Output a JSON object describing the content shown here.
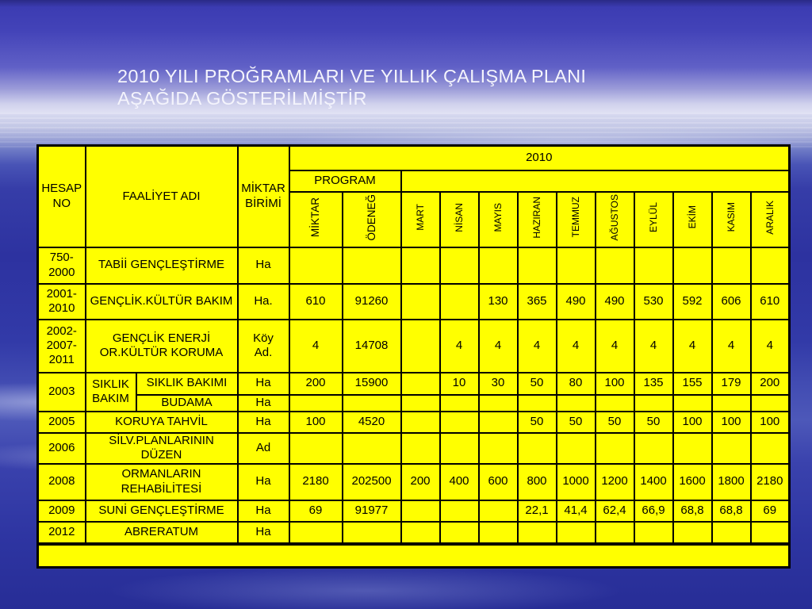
{
  "slide": {
    "title": "2010 YILI PROĞRAMLARI VE YILLIK ÇALIŞMA PLANI\nAŞAĞIDA GÖSTERİLMİŞTİR"
  },
  "colors": {
    "table_bg": "#FFFF00",
    "table_border": "#000000",
    "title_text": "#F4F4FC",
    "background_blue": "#2D32A0"
  },
  "table": {
    "header": {
      "hesap_no": "HESAP\nNO",
      "faaliyet_adi": "FAALİYET ADI",
      "miktar_birimi": "MİKTAR\nBİRİMİ",
      "year": "2010",
      "program": "PROGRAM",
      "program_sub": [
        "MİKTAR",
        "ÖDENEĞ"
      ],
      "months": [
        "MART",
        "NİSAN",
        "MAYIS",
        "HAZIRAN",
        "TEMMUZ",
        "AĞUSTOS",
        "EYLÜL",
        "EKİM",
        "KASIM",
        "ARALIK"
      ]
    },
    "rows": [
      {
        "hesap": "750-\n2000",
        "label": "TABİİ GENÇLEŞTİRME",
        "birim": "Ha",
        "miktar": "",
        "odenek": "",
        "months": [
          "",
          "",
          "",
          "",
          "",
          "",
          "",
          "",
          "",
          ""
        ]
      },
      {
        "hesap": "2001-\n2010",
        "label": "GENÇLİK.KÜLTÜR BAKIM",
        "birim": "Ha.",
        "miktar": "610",
        "odenek": "91260",
        "months": [
          "",
          "",
          "130",
          "365",
          "490",
          "490",
          "530",
          "592",
          "606",
          "610"
        ]
      },
      {
        "hesap": "2002-\n2007-\n2011",
        "label": "GENÇLİK ENERJİ\nOR.KÜLTÜR KORUMA",
        "birim": "Köy\nAd.",
        "miktar": "4",
        "odenek": "14708",
        "months": [
          "",
          "4",
          "4",
          "4",
          "4",
          "4",
          "4",
          "4",
          "4",
          "4"
        ]
      },
      {
        "hesap": "2003",
        "hesap_rowspan": 2,
        "group": "SIKLIK\nBAKIM",
        "group_rowspan": 2,
        "label": "SIKLIK BAKIMI",
        "label_colspan": 1,
        "birim": "Ha",
        "miktar": "200",
        "odenek": "15900",
        "months": [
          "",
          "10",
          "30",
          "50",
          "80",
          "100",
          "135",
          "155",
          "179",
          "200"
        ]
      },
      {
        "continuation": true,
        "label": "BUDAMA",
        "label_colspan": 1,
        "birim": "Ha",
        "miktar": "",
        "odenek": "",
        "months": [
          "",
          "",
          "",
          "",
          "",
          "",
          "",
          "",
          "",
          ""
        ]
      },
      {
        "hesap": "2005",
        "label": "KORUYA TAHVİL",
        "birim": "Ha",
        "miktar": "100",
        "odenek": "4520",
        "months": [
          "",
          "",
          "",
          "50",
          "50",
          "50",
          "50",
          "100",
          "100",
          "100"
        ]
      },
      {
        "hesap": "2006",
        "label": "SİLV.PLANLARININ\nDÜZEN",
        "birim": "Ad",
        "miktar": "",
        "odenek": "",
        "months": [
          "",
          "",
          "",
          "",
          "",
          "",
          "",
          "",
          "",
          ""
        ]
      },
      {
        "hesap": "2008",
        "label": "ORMANLARIN\nREHABİLİTESİ",
        "birim": "Ha",
        "miktar": "2180",
        "odenek": "202500",
        "months": [
          "200",
          "400",
          "600",
          "800",
          "1000",
          "1200",
          "1400",
          "1600",
          "1800",
          "2180"
        ]
      },
      {
        "hesap": "2009",
        "label": "SUNİ GENÇLEŞTİRME",
        "birim": "Ha",
        "miktar": "69",
        "odenek": "91977",
        "months": [
          "",
          "",
          "",
          "22,1",
          "41,4",
          "62,4",
          "66,9",
          "68,8",
          "68,8",
          "69"
        ]
      },
      {
        "hesap": "2012",
        "label": "ABRERATUM",
        "birim": "Ha",
        "miktar": "",
        "odenek": "",
        "months": [
          "",
          "",
          "",
          "",
          "",
          "",
          "",
          "",
          "",
          ""
        ]
      }
    ],
    "footer_note": ""
  }
}
